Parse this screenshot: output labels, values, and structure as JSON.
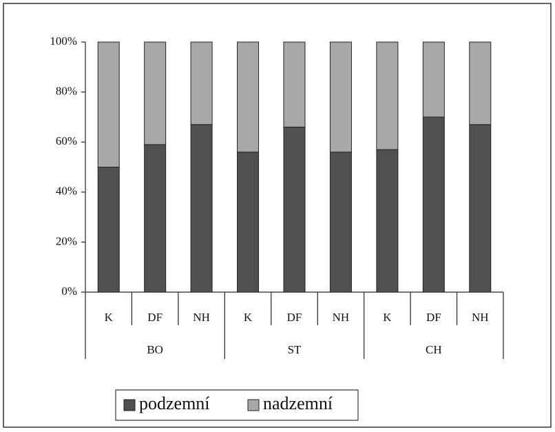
{
  "chart_data": {
    "type": "stacked_bar_percent",
    "categories": [
      "K",
      "DF",
      "NH",
      "K",
      "DF",
      "NH",
      "K",
      "DF",
      "NH"
    ],
    "groups": [
      "BO",
      "ST",
      "CH"
    ],
    "series": [
      {
        "name": "podzemní",
        "color": "#505050",
        "values": [
          50,
          59,
          67,
          56,
          66,
          56,
          57,
          70,
          67
        ]
      },
      {
        "name": "nadzemní",
        "color": "#a8a8a8",
        "values": [
          50,
          41,
          33,
          44,
          34,
          44,
          43,
          30,
          33
        ]
      }
    ],
    "ylim": [
      0,
      100
    ],
    "yticks": [
      {
        "value": 0,
        "label": "0%"
      },
      {
        "value": 20,
        "label": "20%"
      },
      {
        "value": 40,
        "label": "40%"
      },
      {
        "value": 60,
        "label": "60%"
      },
      {
        "value": 80,
        "label": "80%"
      },
      {
        "value": 100,
        "label": "100%"
      }
    ],
    "legend": "bottom-left"
  }
}
